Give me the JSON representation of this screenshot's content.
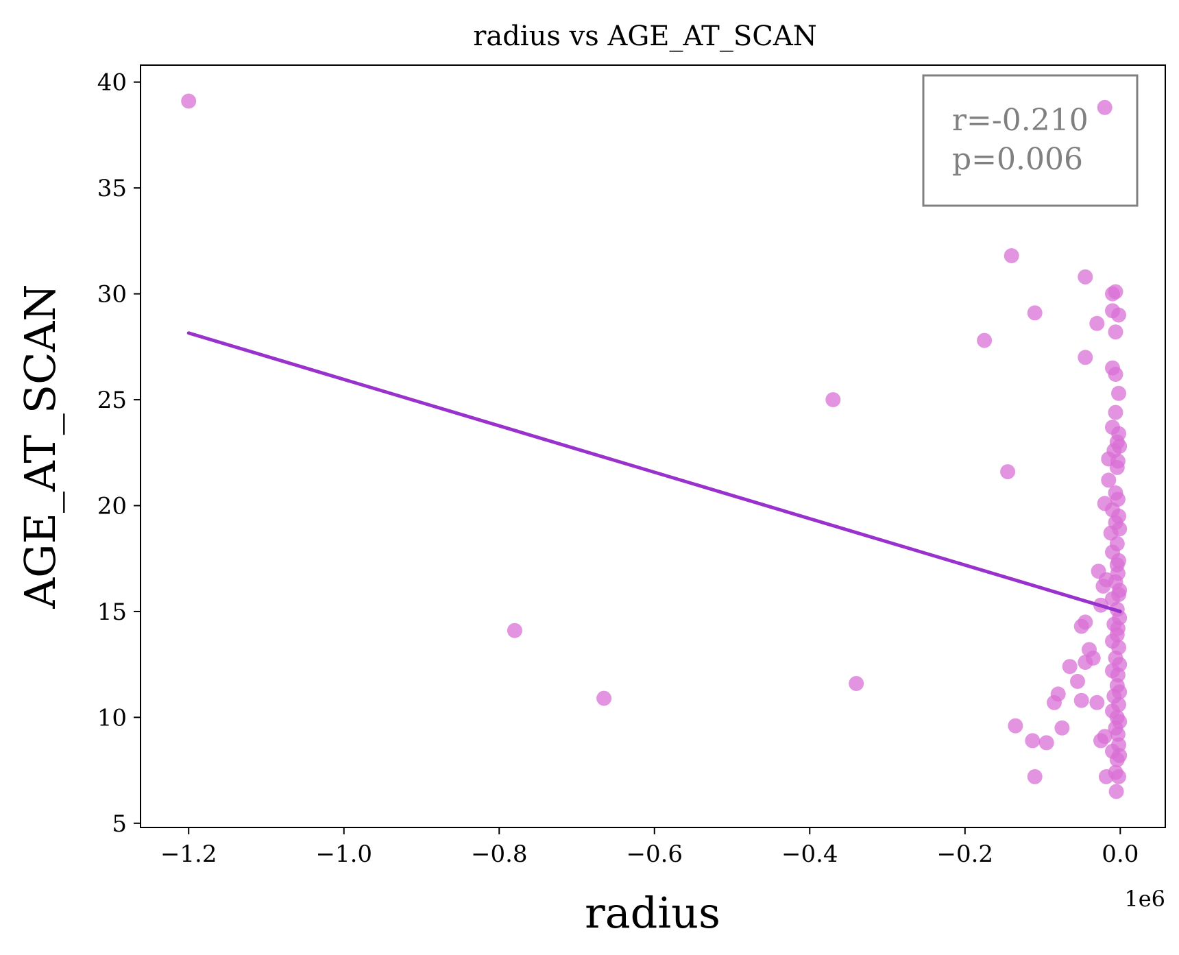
{
  "chart_data": {
    "type": "scatter",
    "title": "radius vs AGE_AT_SCAN",
    "xlabel": "radius",
    "ylabel": "AGE_AT_SCAN",
    "x_offset_label": "1e6",
    "xlim": [
      -1.262,
      0.058
    ],
    "ylim": [
      4.8,
      40.8
    ],
    "x_ticks": [
      -1.2,
      -1.0,
      -0.8,
      -0.6,
      -0.4,
      -0.2,
      0.0
    ],
    "x_tick_labels": [
      "−1.2",
      "−1.0",
      "−0.8",
      "−0.6",
      "−0.4",
      "−0.2",
      "0.0"
    ],
    "y_ticks": [
      5,
      10,
      15,
      20,
      25,
      30,
      35,
      40
    ],
    "y_tick_labels": [
      "5",
      "10",
      "15",
      "20",
      "25",
      "30",
      "35",
      "40"
    ],
    "grid": false,
    "colors": {
      "points": "#da70d6",
      "line": "#9932cc",
      "annotation_text": "#808080",
      "annotation_border": "#808080"
    },
    "annotation": {
      "lines": [
        "r=-0.210",
        "p=0.006"
      ],
      "placement": "top-right"
    },
    "regression": {
      "x": [
        -1.2,
        0.0
      ],
      "y": [
        28.15,
        15.0
      ]
    },
    "points": [
      {
        "x": -1.2,
        "y": 39.1
      },
      {
        "x": -0.78,
        "y": 14.1
      },
      {
        "x": -0.665,
        "y": 10.9
      },
      {
        "x": -0.37,
        "y": 25.0
      },
      {
        "x": -0.34,
        "y": 11.6
      },
      {
        "x": -0.175,
        "y": 27.8
      },
      {
        "x": -0.145,
        "y": 21.6
      },
      {
        "x": -0.14,
        "y": 31.8
      },
      {
        "x": -0.135,
        "y": 9.6
      },
      {
        "x": -0.11,
        "y": 29.1
      },
      {
        "x": -0.11,
        "y": 7.2
      },
      {
        "x": -0.113,
        "y": 8.9
      },
      {
        "x": -0.095,
        "y": 8.8
      },
      {
        "x": -0.085,
        "y": 10.7
      },
      {
        "x": -0.08,
        "y": 11.1
      },
      {
        "x": -0.075,
        "y": 9.5
      },
      {
        "x": -0.065,
        "y": 12.4
      },
      {
        "x": -0.055,
        "y": 11.7
      },
      {
        "x": -0.05,
        "y": 14.3
      },
      {
        "x": -0.045,
        "y": 14.5
      },
      {
        "x": -0.05,
        "y": 10.8
      },
      {
        "x": -0.045,
        "y": 12.6
      },
      {
        "x": -0.04,
        "y": 13.2
      },
      {
        "x": -0.035,
        "y": 12.8
      },
      {
        "x": -0.03,
        "y": 10.7
      },
      {
        "x": -0.045,
        "y": 30.8
      },
      {
        "x": -0.045,
        "y": 27.0
      },
      {
        "x": -0.03,
        "y": 28.6
      },
      {
        "x": -0.02,
        "y": 38.8
      },
      {
        "x": -0.028,
        "y": 16.9
      },
      {
        "x": -0.025,
        "y": 15.3
      },
      {
        "x": -0.022,
        "y": 16.2
      },
      {
        "x": -0.025,
        "y": 8.9
      },
      {
        "x": -0.02,
        "y": 9.1
      },
      {
        "x": -0.018,
        "y": 7.2
      },
      {
        "x": -0.02,
        "y": 20.1
      },
      {
        "x": -0.018,
        "y": 16.5
      },
      {
        "x": -0.015,
        "y": 21.2
      },
      {
        "x": -0.015,
        "y": 22.2
      },
      {
        "x": -0.012,
        "y": 18.7
      },
      {
        "x": -0.01,
        "y": 29.2
      },
      {
        "x": -0.01,
        "y": 30.0
      },
      {
        "x": -0.01,
        "y": 26.5
      },
      {
        "x": -0.01,
        "y": 23.7
      },
      {
        "x": -0.01,
        "y": 19.8
      },
      {
        "x": -0.01,
        "y": 17.8
      },
      {
        "x": -0.01,
        "y": 15.6
      },
      {
        "x": -0.01,
        "y": 13.6
      },
      {
        "x": -0.01,
        "y": 12.2
      },
      {
        "x": -0.01,
        "y": 10.3
      },
      {
        "x": -0.01,
        "y": 8.4
      },
      {
        "x": -0.008,
        "y": 22.6
      },
      {
        "x": -0.008,
        "y": 14.4
      },
      {
        "x": -0.008,
        "y": 11.0
      },
      {
        "x": -0.006,
        "y": 30.1
      },
      {
        "x": -0.006,
        "y": 28.2
      },
      {
        "x": -0.006,
        "y": 26.2
      },
      {
        "x": -0.006,
        "y": 24.4
      },
      {
        "x": -0.006,
        "y": 20.6
      },
      {
        "x": -0.006,
        "y": 19.2
      },
      {
        "x": -0.006,
        "y": 16.4
      },
      {
        "x": -0.006,
        "y": 12.8
      },
      {
        "x": -0.006,
        "y": 9.5
      },
      {
        "x": -0.006,
        "y": 7.4
      },
      {
        "x": -0.005,
        "y": 6.5
      },
      {
        "x": -0.004,
        "y": 23.0
      },
      {
        "x": -0.004,
        "y": 21.8
      },
      {
        "x": -0.004,
        "y": 18.2
      },
      {
        "x": -0.004,
        "y": 17.2
      },
      {
        "x": -0.004,
        "y": 15.1
      },
      {
        "x": -0.004,
        "y": 13.9
      },
      {
        "x": -0.004,
        "y": 11.5
      },
      {
        "x": -0.004,
        "y": 10.0
      },
      {
        "x": -0.004,
        "y": 8.0
      },
      {
        "x": -0.003,
        "y": 22.1
      },
      {
        "x": -0.003,
        "y": 20.3
      },
      {
        "x": -0.003,
        "y": 16.8
      },
      {
        "x": -0.003,
        "y": 14.2
      },
      {
        "x": -0.003,
        "y": 12.0
      },
      {
        "x": -0.003,
        "y": 9.2
      },
      {
        "x": -0.002,
        "y": 29.0
      },
      {
        "x": -0.002,
        "y": 25.3
      },
      {
        "x": -0.002,
        "y": 23.4
      },
      {
        "x": -0.002,
        "y": 19.5
      },
      {
        "x": -0.002,
        "y": 17.4
      },
      {
        "x": -0.002,
        "y": 15.8
      },
      {
        "x": -0.002,
        "y": 13.3
      },
      {
        "x": -0.002,
        "y": 10.6
      },
      {
        "x": -0.002,
        "y": 8.7
      },
      {
        "x": -0.002,
        "y": 7.2
      },
      {
        "x": -0.001,
        "y": 22.8
      },
      {
        "x": -0.001,
        "y": 18.9
      },
      {
        "x": -0.001,
        "y": 16.0
      },
      {
        "x": -0.001,
        "y": 14.7
      },
      {
        "x": -0.001,
        "y": 12.5
      },
      {
        "x": -0.001,
        "y": 11.2
      },
      {
        "x": -0.001,
        "y": 9.8
      },
      {
        "x": -0.001,
        "y": 8.2
      }
    ]
  }
}
